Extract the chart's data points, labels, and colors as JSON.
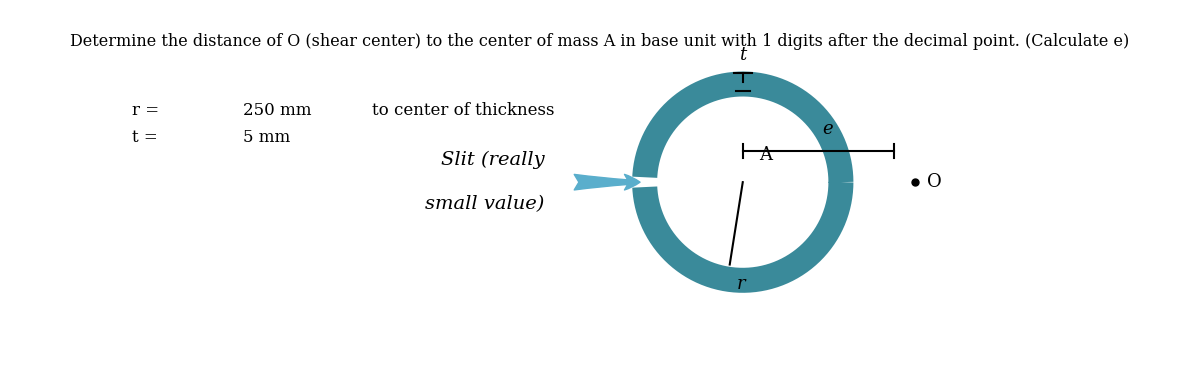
{
  "title": "Determine the distance of O (shear center) to the center of mass A in base unit with 1 digits after the decimal point. (Calculate e)",
  "r_label": "r =",
  "r_value": "250 mm",
  "r_note": "to center of thickness",
  "t_label": "t =",
  "t_value": "5 mm",
  "slit_text_line1": "Slit (really",
  "slit_text_line2": "small value)",
  "ring_color": "#3a8a9a",
  "bg_color": "#ffffff",
  "text_color": "#000000",
  "title_fontsize": 11.5,
  "label_fontsize": 12,
  "annot_fontsize": 13
}
